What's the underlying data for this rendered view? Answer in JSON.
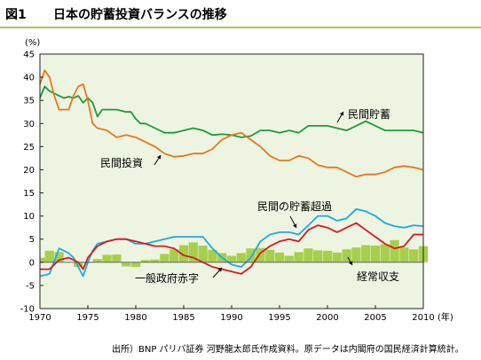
{
  "figure_label": "図1",
  "figure_title": "日本の貯蓄投資バランスの推移",
  "source_note": "出所）BNP パリバ証券 河野龍太郎氏作成資料。原データは内閣府の国民経済計算統計。",
  "colors": {
    "plot_bg": "#eef4e2",
    "private_saving": "#1e9a3a",
    "private_investment": "#e8761e",
    "private_excess_saving": "#1ea9e1",
    "general_govt_deficit": "#d8191e",
    "current_account": "#a7cf4d",
    "title_rule": "#9ccf5a"
  },
  "chart_data": {
    "type": "line",
    "title": "",
    "unit_label": "(%)",
    "x_unit_label": "(年)",
    "xlim": [
      1970,
      2010
    ],
    "ylim": [
      -10,
      45
    ],
    "x_ticks": [
      1970,
      1975,
      1980,
      1985,
      1990,
      1995,
      2000,
      2005,
      2010
    ],
    "y_ticks": [
      -10,
      -5,
      0,
      5,
      10,
      15,
      20,
      25,
      30,
      35,
      40,
      45
    ],
    "grid": false,
    "series": [
      {
        "key": "private_saving",
        "name": "民間貯蓄",
        "style": "line",
        "points": [
          [
            1970,
            35.5
          ],
          [
            1970.5,
            38.0
          ],
          [
            1971,
            37.0
          ],
          [
            1971.5,
            36.5
          ],
          [
            1972,
            36.0
          ],
          [
            1972.5,
            35.5
          ],
          [
            1973,
            35.8
          ],
          [
            1973.5,
            35.5
          ],
          [
            1974,
            36.0
          ],
          [
            1974.5,
            34.5
          ],
          [
            1975,
            35.5
          ],
          [
            1975.5,
            34.5
          ],
          [
            1976,
            31.5
          ],
          [
            1976.5,
            33.0
          ],
          [
            1977,
            33.0
          ],
          [
            1978,
            33.0
          ],
          [
            1979,
            32.5
          ],
          [
            1979.5,
            32.5
          ],
          [
            1980,
            31.0
          ],
          [
            1980.5,
            30.0
          ],
          [
            1981,
            30.0
          ],
          [
            1982,
            29.0
          ],
          [
            1983,
            28.0
          ],
          [
            1984,
            28.0
          ],
          [
            1985,
            28.5
          ],
          [
            1986,
            29.0
          ],
          [
            1987,
            28.5
          ],
          [
            1988,
            27.5
          ],
          [
            1989,
            27.7
          ],
          [
            1990,
            27.5
          ],
          [
            1991,
            27.0
          ],
          [
            1992,
            27.3
          ],
          [
            1993,
            28.5
          ],
          [
            1994,
            28.5
          ],
          [
            1995,
            28.0
          ],
          [
            1996,
            28.5
          ],
          [
            1997,
            28.0
          ],
          [
            1998,
            29.5
          ],
          [
            1999,
            29.5
          ],
          [
            2000,
            29.5
          ],
          [
            2001,
            29.0
          ],
          [
            2002,
            28.5
          ],
          [
            2003,
            29.5
          ],
          [
            2004,
            30.5
          ],
          [
            2005,
            29.5
          ],
          [
            2006,
            28.5
          ],
          [
            2007,
            28.5
          ],
          [
            2008,
            28.5
          ],
          [
            2009,
            28.5
          ],
          [
            2010,
            28.0
          ]
        ]
      },
      {
        "key": "private_investment",
        "name": "民間投資",
        "style": "line",
        "points": [
          [
            1970,
            38.5
          ],
          [
            1970.5,
            41.5
          ],
          [
            1971,
            40.0
          ],
          [
            1971.5,
            36.0
          ],
          [
            1972,
            33.0
          ],
          [
            1973,
            33.0
          ],
          [
            1973.5,
            36.0
          ],
          [
            1974,
            38.0
          ],
          [
            1974.5,
            38.5
          ],
          [
            1975,
            35.0
          ],
          [
            1975.5,
            30.0
          ],
          [
            1976,
            29.0
          ],
          [
            1977,
            28.5
          ],
          [
            1978,
            27.0
          ],
          [
            1979,
            27.5
          ],
          [
            1980,
            27.0
          ],
          [
            1981,
            26.0
          ],
          [
            1982,
            25.0
          ],
          [
            1983,
            23.5
          ],
          [
            1984,
            22.8
          ],
          [
            1985,
            23.0
          ],
          [
            1986,
            23.5
          ],
          [
            1987,
            23.5
          ],
          [
            1988,
            24.5
          ],
          [
            1989,
            26.5
          ],
          [
            1990,
            27.5
          ],
          [
            1991,
            28.0
          ],
          [
            1992,
            26.5
          ],
          [
            1993,
            25.0
          ],
          [
            1994,
            23.0
          ],
          [
            1995,
            22.0
          ],
          [
            1996,
            22.0
          ],
          [
            1997,
            23.0
          ],
          [
            1998,
            22.5
          ],
          [
            1999,
            21.0
          ],
          [
            2000,
            20.5
          ],
          [
            2001,
            20.5
          ],
          [
            2002,
            19.5
          ],
          [
            2003,
            18.5
          ],
          [
            2004,
            19.0
          ],
          [
            2005,
            19.0
          ],
          [
            2006,
            19.5
          ],
          [
            2007,
            20.5
          ],
          [
            2008,
            20.8
          ],
          [
            2009,
            20.5
          ],
          [
            2010,
            20.0
          ]
        ]
      },
      {
        "key": "private_excess_saving",
        "name": "民間の貯蓄超過",
        "style": "line",
        "points": [
          [
            1970,
            -3.0
          ],
          [
            1971,
            -2.5
          ],
          [
            1972,
            3.0
          ],
          [
            1973,
            2.0
          ],
          [
            1973.5,
            1.0
          ],
          [
            1974,
            -1.0
          ],
          [
            1974.5,
            -3.0
          ],
          [
            1975,
            0.0
          ],
          [
            1975.5,
            2.5
          ],
          [
            1976,
            4.0
          ],
          [
            1977,
            4.5
          ],
          [
            1978,
            5.0
          ],
          [
            1979,
            5.0
          ],
          [
            1980,
            4.0
          ],
          [
            1981,
            4.0
          ],
          [
            1982,
            4.5
          ],
          [
            1983,
            5.0
          ],
          [
            1984,
            5.5
          ],
          [
            1985,
            5.5
          ],
          [
            1986,
            5.5
          ],
          [
            1987,
            5.5
          ],
          [
            1988,
            3.0
          ],
          [
            1989,
            1.0
          ],
          [
            1990,
            -0.5
          ],
          [
            1991,
            -1.0
          ],
          [
            1992,
            1.0
          ],
          [
            1993,
            4.5
          ],
          [
            1994,
            6.0
          ],
          [
            1995,
            6.5
          ],
          [
            1996,
            6.5
          ],
          [
            1997,
            6.0
          ],
          [
            1998,
            8.0
          ],
          [
            1999,
            10.0
          ],
          [
            2000,
            10.0
          ],
          [
            2001,
            9.0
          ],
          [
            2002,
            9.5
          ],
          [
            2003,
            11.5
          ],
          [
            2004,
            11.0
          ],
          [
            2005,
            10.0
          ],
          [
            2006,
            8.5
          ],
          [
            2007,
            7.8
          ],
          [
            2008,
            7.5
          ],
          [
            2009,
            8.0
          ],
          [
            2010,
            7.8
          ]
        ]
      },
      {
        "key": "general_govt_deficit",
        "name": "一般政府赤字",
        "style": "line",
        "points": [
          [
            1970,
            -1.5
          ],
          [
            1971,
            -1.5
          ],
          [
            1972,
            0.5
          ],
          [
            1973,
            1.0
          ],
          [
            1974,
            0.0
          ],
          [
            1974.5,
            -1.5
          ],
          [
            1975,
            1.0
          ],
          [
            1976,
            3.5
          ],
          [
            1977,
            4.5
          ],
          [
            1978,
            5.0
          ],
          [
            1979,
            5.0
          ],
          [
            1980,
            4.5
          ],
          [
            1981,
            4.0
          ],
          [
            1982,
            3.5
          ],
          [
            1983,
            3.5
          ],
          [
            1984,
            3.0
          ],
          [
            1985,
            1.5
          ],
          [
            1986,
            1.0
          ],
          [
            1987,
            0.0
          ],
          [
            1988,
            -1.0
          ],
          [
            1989,
            -1.5
          ],
          [
            1990,
            -2.0
          ],
          [
            1991,
            -2.5
          ],
          [
            1992,
            -1.0
          ],
          [
            1993,
            2.0
          ],
          [
            1994,
            3.5
          ],
          [
            1995,
            4.5
          ],
          [
            1996,
            5.0
          ],
          [
            1997,
            4.5
          ],
          [
            1998,
            7.0
          ],
          [
            1999,
            8.0
          ],
          [
            2000,
            7.5
          ],
          [
            2001,
            6.5
          ],
          [
            2002,
            7.5
          ],
          [
            2003,
            8.5
          ],
          [
            2004,
            7.0
          ],
          [
            2005,
            5.5
          ],
          [
            2006,
            4.0
          ],
          [
            2007,
            3.0
          ],
          [
            2008,
            3.5
          ],
          [
            2009,
            6.0
          ],
          [
            2010,
            6.0
          ]
        ]
      },
      {
        "key": "current_account",
        "name": "経常収支",
        "style": "bar",
        "points": [
          [
            1970,
            1.0
          ],
          [
            1971,
            2.5
          ],
          [
            1972,
            2.2
          ],
          [
            1973,
            0.0
          ],
          [
            1974,
            -1.0
          ],
          [
            1975,
            -0.1
          ],
          [
            1976,
            0.7
          ],
          [
            1977,
            1.6
          ],
          [
            1978,
            1.7
          ],
          [
            1979,
            -0.9
          ],
          [
            1980,
            -1.0
          ],
          [
            1981,
            0.5
          ],
          [
            1982,
            0.6
          ],
          [
            1983,
            1.8
          ],
          [
            1984,
            2.8
          ],
          [
            1985,
            3.7
          ],
          [
            1986,
            4.3
          ],
          [
            1987,
            3.6
          ],
          [
            1988,
            2.7
          ],
          [
            1989,
            2.0
          ],
          [
            1990,
            1.4
          ],
          [
            1991,
            2.0
          ],
          [
            1992,
            3.0
          ],
          [
            1993,
            3.1
          ],
          [
            1994,
            2.7
          ],
          [
            1995,
            2.1
          ],
          [
            1996,
            1.4
          ],
          [
            1997,
            2.2
          ],
          [
            1998,
            3.0
          ],
          [
            1999,
            2.6
          ],
          [
            2000,
            2.5
          ],
          [
            2001,
            2.1
          ],
          [
            2002,
            2.8
          ],
          [
            2003,
            3.2
          ],
          [
            2004,
            3.7
          ],
          [
            2005,
            3.6
          ],
          [
            2006,
            3.9
          ],
          [
            2007,
            4.8
          ],
          [
            2008,
            3.2
          ],
          [
            2009,
            2.8
          ],
          [
            2010,
            3.5
          ]
        ]
      }
    ],
    "annotations": [
      {
        "text": "民間貯蓄",
        "series": "private_saving"
      },
      {
        "text": "民間投資",
        "series": "private_investment"
      },
      {
        "text": "民間の貯蓄超過",
        "series": "private_excess_saving"
      },
      {
        "text": "一般政府赤字",
        "series": "general_govt_deficit"
      },
      {
        "text": "経常収支",
        "series": "current_account"
      }
    ]
  }
}
